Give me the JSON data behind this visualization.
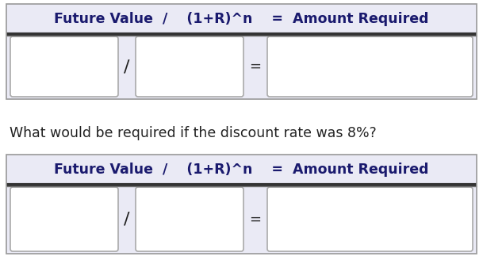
{
  "bg_color": "#ffffff",
  "panel_bg": "#eaeaf5",
  "panel_border": "#555566",
  "box_bg": "#ffffff",
  "box_border": "#aaaaaa",
  "header_text": "Future Value  /    (1+R)^n    =  Amount Required",
  "question_text": "What would be required if the discount rate was 8%?",
  "slash_text": "/",
  "equals_text": "=",
  "header_fontsize": 12.5,
  "question_fontsize": 12.5,
  "operator_fontsize": 13,
  "text_color": "#1a1a6e",
  "question_color": "#222222",
  "fig_width": 6.09,
  "fig_height": 3.33,
  "dpi": 100
}
